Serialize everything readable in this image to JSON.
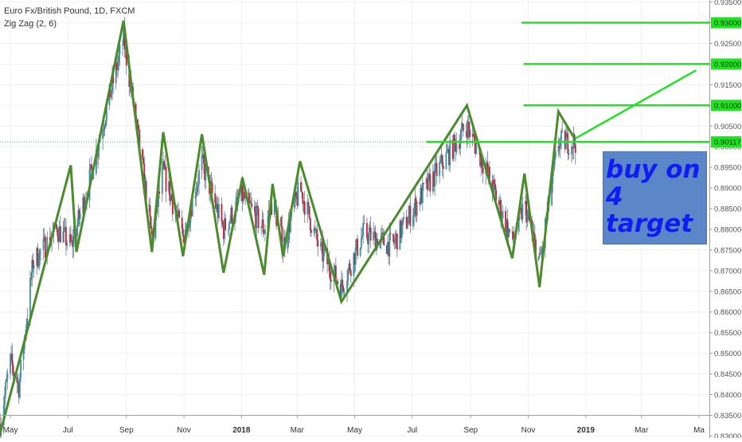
{
  "legend": {
    "symbol_line": "Euro Fx/British Pound, 1D, FXCM",
    "indicator_line": "Zig Zag (2, 6)"
  },
  "annotation": {
    "text": "buy on\n4\ntarget"
  },
  "colors": {
    "up_candle": "#3c8fa0",
    "down_candle": "#b5263a",
    "wick": "#6a7a86",
    "zigzag": "#4b8b2e",
    "target_lines": "#22e022",
    "price_line": "#5fa08a",
    "annotation_bg": "#5b87c9",
    "annotation_text": "#0d1ff0",
    "grid": "#eef0f3",
    "axis_text": "#555555"
  },
  "chart_data": {
    "type": "candlestick",
    "title": "Euro Fx/British Pound, 1D, FXCM",
    "indicator": "Zig Zag (2, 6)",
    "grid": true,
    "ylim": [
      0.8295,
      0.9355
    ],
    "x_range": [
      "2017-04-20",
      "2019-05-12"
    ],
    "y_ticks": [
      "0.93500",
      "0.93000",
      "0.92500",
      "0.92000",
      "0.91500",
      "0.91000",
      "0.90500",
      "0.90000",
      "0.89500",
      "0.89000",
      "0.88500",
      "0.88000",
      "0.87500",
      "0.87000",
      "0.86500",
      "0.86000",
      "0.85500",
      "0.85000",
      "0.84500",
      "0.84000",
      "0.83500",
      "0.83000"
    ],
    "x_ticks": [
      {
        "label": "May",
        "date": "2017-05-01",
        "bold": false
      },
      {
        "label": "Jul",
        "date": "2017-07-01",
        "bold": false
      },
      {
        "label": "Sep",
        "date": "2017-09-01",
        "bold": false
      },
      {
        "label": "Nov",
        "date": "2017-11-01",
        "bold": false
      },
      {
        "label": "2018",
        "date": "2018-01-01",
        "bold": true
      },
      {
        "label": "Mar",
        "date": "2018-03-01",
        "bold": false
      },
      {
        "label": "May",
        "date": "2018-05-01",
        "bold": false
      },
      {
        "label": "Jul",
        "date": "2018-07-01",
        "bold": false
      },
      {
        "label": "Sep",
        "date": "2018-09-01",
        "bold": false
      },
      {
        "label": "Nov",
        "date": "2018-11-01",
        "bold": false
      },
      {
        "label": "2019",
        "date": "2019-01-01",
        "bold": true
      },
      {
        "label": "Mar",
        "date": "2019-03-01",
        "bold": false
      },
      {
        "label": "Ma",
        "date": "2019-05-01",
        "bold": false
      }
    ],
    "zigzag": [
      {
        "date": "2017-04-20",
        "value": 0.8305
      },
      {
        "date": "2017-07-04",
        "value": 0.8955
      },
      {
        "date": "2017-07-10",
        "value": 0.8745
      },
      {
        "date": "2017-08-29",
        "value": 0.9305
      },
      {
        "date": "2017-09-28",
        "value": 0.8745
      },
      {
        "date": "2017-10-10",
        "value": 0.9035
      },
      {
        "date": "2017-10-31",
        "value": 0.8735
      },
      {
        "date": "2017-11-20",
        "value": 0.903
      },
      {
        "date": "2017-12-13",
        "value": 0.8695
      },
      {
        "date": "2018-01-02",
        "value": 0.8925
      },
      {
        "date": "2018-01-25",
        "value": 0.869
      },
      {
        "date": "2018-02-03",
        "value": 0.891
      },
      {
        "date": "2018-02-14",
        "value": 0.8735
      },
      {
        "date": "2018-03-04",
        "value": 0.8965
      },
      {
        "date": "2018-04-17",
        "value": 0.8625
      },
      {
        "date": "2018-08-28",
        "value": 0.91
      },
      {
        "date": "2018-10-15",
        "value": 0.873
      },
      {
        "date": "2018-10-28",
        "value": 0.8935
      },
      {
        "date": "2018-11-13",
        "value": 0.866
      },
      {
        "date": "2018-12-03",
        "value": 0.9085
      },
      {
        "date": "2018-12-20",
        "value": 0.902
      }
    ],
    "target_lines": [
      {
        "label": "0.93000",
        "value": 0.93,
        "from": "2018-10-25"
      },
      {
        "label": "0.92000",
        "value": 0.92,
        "from": "2018-10-27"
      },
      {
        "label": "0.91000",
        "value": 0.91,
        "from": "2018-10-27"
      },
      {
        "label": "0.90117",
        "value": 0.90117,
        "from": "2018-07-16"
      }
    ],
    "trend_line": [
      {
        "date": "2018-12-21",
        "value": 0.902
      },
      {
        "date": "2019-04-28",
        "value": 0.9185
      }
    ],
    "current_price": 0.90117,
    "candle_anchors": [
      {
        "date": "2017-04-20",
        "value": 0.833
      },
      {
        "date": "2017-05-01",
        "value": 0.848
      },
      {
        "date": "2017-05-10",
        "value": 0.842
      },
      {
        "date": "2017-05-25",
        "value": 0.872
      },
      {
        "date": "2017-06-10",
        "value": 0.877
      },
      {
        "date": "2017-06-20",
        "value": 0.88
      },
      {
        "date": "2017-07-05",
        "value": 0.876
      },
      {
        "date": "2017-07-25",
        "value": 0.893
      },
      {
        "date": "2017-08-15",
        "value": 0.913
      },
      {
        "date": "2017-08-29",
        "value": 0.926
      },
      {
        "date": "2017-09-15",
        "value": 0.9
      },
      {
        "date": "2017-09-28",
        "value": 0.878
      },
      {
        "date": "2017-10-10",
        "value": 0.894
      },
      {
        "date": "2017-10-31",
        "value": 0.878
      },
      {
        "date": "2017-11-20",
        "value": 0.896
      },
      {
        "date": "2017-12-13",
        "value": 0.88
      },
      {
        "date": "2018-01-02",
        "value": 0.888
      },
      {
        "date": "2018-01-25",
        "value": 0.88
      },
      {
        "date": "2018-02-03",
        "value": 0.887
      },
      {
        "date": "2018-02-14",
        "value": 0.876
      },
      {
        "date": "2018-03-04",
        "value": 0.89
      },
      {
        "date": "2018-03-25",
        "value": 0.875
      },
      {
        "date": "2018-04-17",
        "value": 0.866
      },
      {
        "date": "2018-05-10",
        "value": 0.879
      },
      {
        "date": "2018-06-10",
        "value": 0.876
      },
      {
        "date": "2018-07-10",
        "value": 0.888
      },
      {
        "date": "2018-08-28",
        "value": 0.905
      },
      {
        "date": "2018-09-20",
        "value": 0.893
      },
      {
        "date": "2018-10-15",
        "value": 0.877
      },
      {
        "date": "2018-10-28",
        "value": 0.886
      },
      {
        "date": "2018-11-13",
        "value": 0.872
      },
      {
        "date": "2018-12-03",
        "value": 0.901
      },
      {
        "date": "2018-12-21",
        "value": 0.9012
      }
    ]
  }
}
